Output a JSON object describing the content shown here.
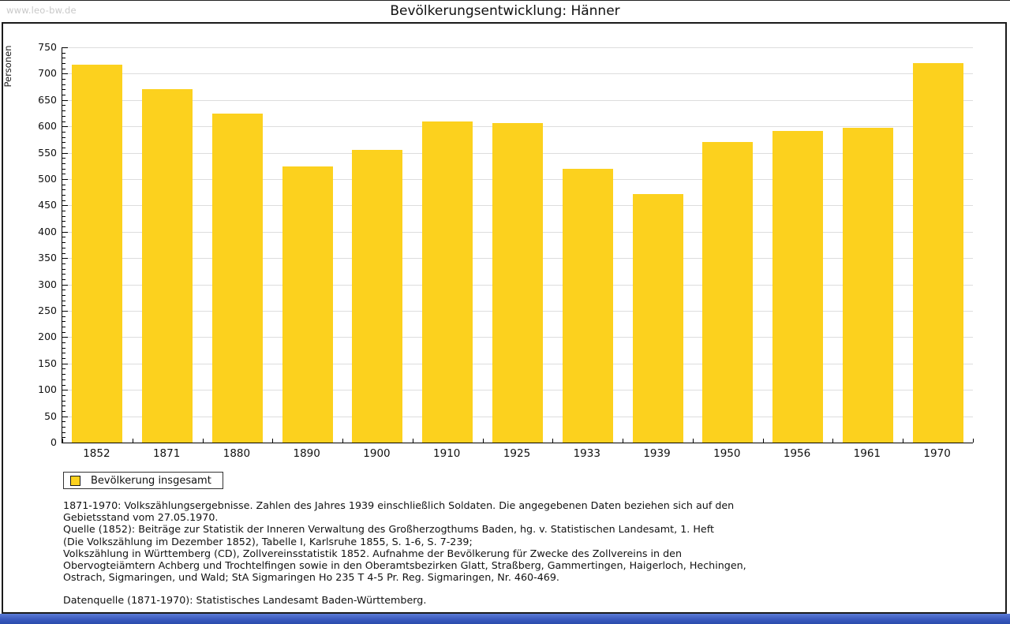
{
  "page": {
    "watermark": "www.leo-bw.de",
    "title": "Bevölkerungsentwicklung: Hänner"
  },
  "chart_data": {
    "type": "bar",
    "title": "Bevölkerungsentwicklung: Hänner",
    "xlabel": "",
    "ylabel": "Personen",
    "categories": [
      "1852",
      "1871",
      "1880",
      "1890",
      "1900",
      "1910",
      "1925",
      "1933",
      "1939",
      "1950",
      "1956",
      "1961",
      "1970"
    ],
    "series": [
      {
        "name": "Bevölkerung insgesamt",
        "values": [
          717,
          670,
          625,
          524,
          556,
          610,
          606,
          519,
          471,
          570,
          592,
          598,
          720
        ]
      }
    ],
    "ylim": [
      0,
      750
    ],
    "ytick_step": 50,
    "ytick_minor_step": 10,
    "grid": "horizontal",
    "legend_position": "bottom-left",
    "bar_color": "#fcd11e"
  },
  "legend": {
    "label": "Bevölkerung insgesamt",
    "swatch_color": "#fcd11e"
  },
  "notes": {
    "lines": [
      "1871-1970: Volkszählungsergebnisse. Zahlen des Jahres 1939 einschließlich Soldaten. Die angegebenen Daten beziehen sich auf den",
      "Gebietsstand vom 27.05.1970.",
      "Quelle (1852): Beiträge zur Statistik der Inneren Verwaltung des Großherzogthums Baden, hg. v. Statistischen Landesamt, 1. Heft",
      "(Die Volkszählung im Dezember 1852), Tabelle I, Karlsruhe 1855, S. 1-6, S. 7-239;",
      "Volkszählung in Württemberg (CD), Zollvereinsstatistik 1852. Aufnahme der Bevölkerung für Zwecke des Zollvereins in den",
      "Obervogteiämtern Achberg und Trochtelfingen sowie in den Oberamtsbezirken Glatt, Straßberg, Gammertingen, Haigerloch, Hechingen,",
      "Ostrach, Sigmaringen, und Wald; StA Sigmaringen Ho 235 T 4-5 Pr. Reg. Sigmaringen, Nr. 460-469."
    ],
    "datasource": "Datenquelle (1871-1970): Statistisches Landesamt Baden-Württemberg."
  },
  "colors": {
    "bar": "#fcd11e",
    "gridline": "#dddddd",
    "panel_border": "#1a1a1a",
    "watermark": "#c9c9c9",
    "bottombar_top": "#5b7bd5",
    "bottombar_bottom": "#2a4cad"
  }
}
